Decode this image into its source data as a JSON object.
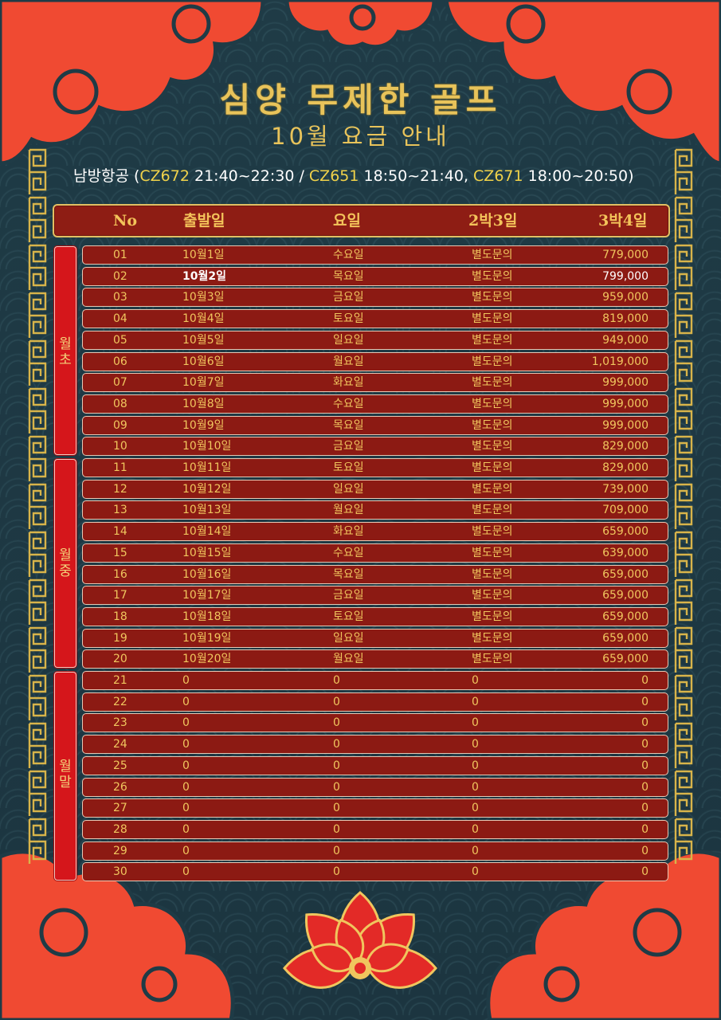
{
  "title": "심양 무제한 골프",
  "subtitle": "10월 요금 안내",
  "airline": {
    "name": "남방항공",
    "open": "(",
    "code1": "CZ672",
    "time1": " 21:40~22:30 / ",
    "code2": "CZ651",
    "time2": " 18:50~21:40, ",
    "code3": "CZ671",
    "time3": " 18:00~20:50)"
  },
  "header": {
    "no": "No",
    "date": "출발일",
    "day": "요일",
    "plan_a": "2박3일",
    "plan_b": "3박4일"
  },
  "periods": [
    {
      "label": [
        "월",
        "초"
      ]
    },
    {
      "label": [
        "월",
        "중"
      ]
    },
    {
      "label": [
        "월",
        "말"
      ]
    }
  ],
  "rows": [
    {
      "no": "01",
      "date": "10월1일",
      "day": "수요일",
      "p2": "별도문의",
      "p3": "779,000"
    },
    {
      "no": "02",
      "date": "10월2일",
      "day": "목요일",
      "p2": "별도문의",
      "p3": "799,000",
      "highlight": true
    },
    {
      "no": "03",
      "date": "10월3일",
      "day": "금요일",
      "p2": "별도문의",
      "p3": "959,000"
    },
    {
      "no": "04",
      "date": "10월4일",
      "day": "토요일",
      "p2": "별도문의",
      "p3": "819,000"
    },
    {
      "no": "05",
      "date": "10월5일",
      "day": "일요일",
      "p2": "별도문의",
      "p3": "949,000"
    },
    {
      "no": "06",
      "date": "10월6일",
      "day": "월요일",
      "p2": "별도문의",
      "p3": "1,019,000"
    },
    {
      "no": "07",
      "date": "10월7일",
      "day": "화요일",
      "p2": "별도문의",
      "p3": "999,000"
    },
    {
      "no": "08",
      "date": "10월8일",
      "day": "수요일",
      "p2": "별도문의",
      "p3": "999,000"
    },
    {
      "no": "09",
      "date": "10월9일",
      "day": "목요일",
      "p2": "별도문의",
      "p3": "999,000"
    },
    {
      "no": "10",
      "date": "10월10일",
      "day": "금요일",
      "p2": "별도문의",
      "p3": "829,000"
    },
    {
      "no": "11",
      "date": "10월11일",
      "day": "토요일",
      "p2": "별도문의",
      "p3": "829,000"
    },
    {
      "no": "12",
      "date": "10월12일",
      "day": "일요일",
      "p2": "별도문의",
      "p3": "739,000"
    },
    {
      "no": "13",
      "date": "10월13일",
      "day": "월요일",
      "p2": "별도문의",
      "p3": "709,000"
    },
    {
      "no": "14",
      "date": "10월14일",
      "day": "화요일",
      "p2": "별도문의",
      "p3": "659,000"
    },
    {
      "no": "15",
      "date": "10월15일",
      "day": "수요일",
      "p2": "별도문의",
      "p3": "639,000"
    },
    {
      "no": "16",
      "date": "10월16일",
      "day": "목요일",
      "p2": "별도문의",
      "p3": "659,000"
    },
    {
      "no": "17",
      "date": "10월17일",
      "day": "금요일",
      "p2": "별도문의",
      "p3": "659,000"
    },
    {
      "no": "18",
      "date": "10월18일",
      "day": "토요일",
      "p2": "별도문의",
      "p3": "659,000"
    },
    {
      "no": "19",
      "date": "10월19일",
      "day": "일요일",
      "p2": "별도문의",
      "p3": "659,000"
    },
    {
      "no": "20",
      "date": "10월20일",
      "day": "월요일",
      "p2": "별도문의",
      "p3": "659,000"
    },
    {
      "no": "21",
      "date": "0",
      "day": "0",
      "p2": "0",
      "p3": "0"
    },
    {
      "no": "22",
      "date": "0",
      "day": "0",
      "p2": "0",
      "p3": "0"
    },
    {
      "no": "23",
      "date": "0",
      "day": "0",
      "p2": "0",
      "p3": "0"
    },
    {
      "no": "24",
      "date": "0",
      "day": "0",
      "p2": "0",
      "p3": "0"
    },
    {
      "no": "25",
      "date": "0",
      "day": "0",
      "p2": "0",
      "p3": "0"
    },
    {
      "no": "26",
      "date": "0",
      "day": "0",
      "p2": "0",
      "p3": "0"
    },
    {
      "no": "27",
      "date": "0",
      "day": "0",
      "p2": "0",
      "p3": "0"
    },
    {
      "no": "28",
      "date": "0",
      "day": "0",
      "p2": "0",
      "p3": "0"
    },
    {
      "no": "29",
      "date": "0",
      "day": "0",
      "p2": "0",
      "p3": "0"
    },
    {
      "no": "30",
      "date": "0",
      "day": "0",
      "p2": "0",
      "p3": "0"
    }
  ],
  "colors": {
    "background": "#1f3b46",
    "cloud": "#f04a32",
    "gold": "#e8c35a",
    "row_red": "#8c1a13",
    "period_red": "#d5161b"
  }
}
